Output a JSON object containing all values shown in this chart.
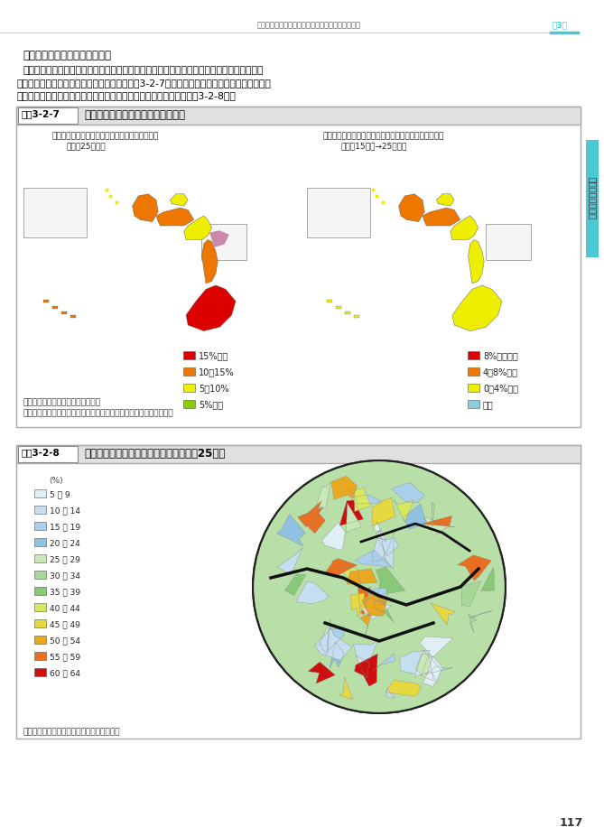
{
  "page_bg": "#ffffff",
  "header_text": "空き地等の創造的活用による地域価値の維持・向上",
  "chapter_label": "第3章",
  "sidebar_color": "#4cc8d4",
  "sidebar_label": "土地に関する動向",
  "body_line0": "（空き地が増加している地域）",
  "body_line1": "　空き地の増加は一部の県を除いて全国的に発生しているが、地域差についてみてみると、",
  "body_line2": "大都市圏と比べ地方圏ほど増加している（図表3-2-7）。また、首都圏においても、郊外部で",
  "body_line3": "は世帯の所有する宅地に占める空き地の件数は高くなっている（図表3-2-8）。",
  "fig1_label": "図表3-2-7",
  "fig1_title": "都道府県別にみた空き地面積の状況",
  "fig1_bg": "#fce8e8",
  "fig1_subtitle_left1": "世帯の所有する宅地等に占める空き地面積の割合",
  "fig1_subtitle_left2": "（平成25年度）",
  "fig1_subtitle_right1": "世帯の所有する宅地等に占める空き地面積の割合の変化",
  "fig1_subtitle_right2": "（平成15年度→25年度）",
  "fig1_legend_left": [
    {
      "label": "15%以上",
      "color": "#dd0000"
    },
    {
      "label": "10〜15%",
      "color": "#ee7700"
    },
    {
      "label": "5〜10%",
      "color": "#eeee00"
    },
    {
      "label": "5%未満",
      "color": "#88cc00"
    }
  ],
  "fig1_legend_right": [
    {
      "label": "8%以上増加",
      "color": "#dd0000"
    },
    {
      "label": "4〜8%増加",
      "color": "#ee7700"
    },
    {
      "label": "0〜4%増加",
      "color": "#eeee00"
    },
    {
      "label": "減少",
      "color": "#88ccdd"
    }
  ],
  "fig1_source_line1": "資料：国土交通省「土地基本調査」",
  "fig1_source_line2": "　注：本調査における「空き地」には原野、荒れ地、池沼などを含む",
  "fig2_label": "図表3-2-8",
  "fig2_title": "自治体別の空き地件数率（世帯）（平成25年）",
  "fig2_bg": "#fce8e8",
  "fig2_legend": [
    {
      "range": "5 〜 9",
      "color": "#e0eef5"
    },
    {
      "range": "10 〜 14",
      "color": "#c5dff0"
    },
    {
      "range": "15 〜 19",
      "color": "#aad0eb"
    },
    {
      "range": "20 〜 24",
      "color": "#8fc1e0"
    },
    {
      "range": "25 〜 29",
      "color": "#c8e8b8"
    },
    {
      "range": "30 〜 34",
      "color": "#a8d898"
    },
    {
      "range": "35 〜 39",
      "color": "#88c878"
    },
    {
      "range": "40 〜 44",
      "color": "#d8e860"
    },
    {
      "range": "45 〜 49",
      "color": "#e8d840"
    },
    {
      "range": "50 〜 54",
      "color": "#e8a820"
    },
    {
      "range": "55 〜 59",
      "color": "#e87020"
    },
    {
      "range": "60 〜 64",
      "color": "#cc1010"
    }
  ],
  "fig2_legend_unit": "(%)",
  "fig2_source": "資料：国土交通省「土地基本調査」より作成",
  "page_number": "117"
}
